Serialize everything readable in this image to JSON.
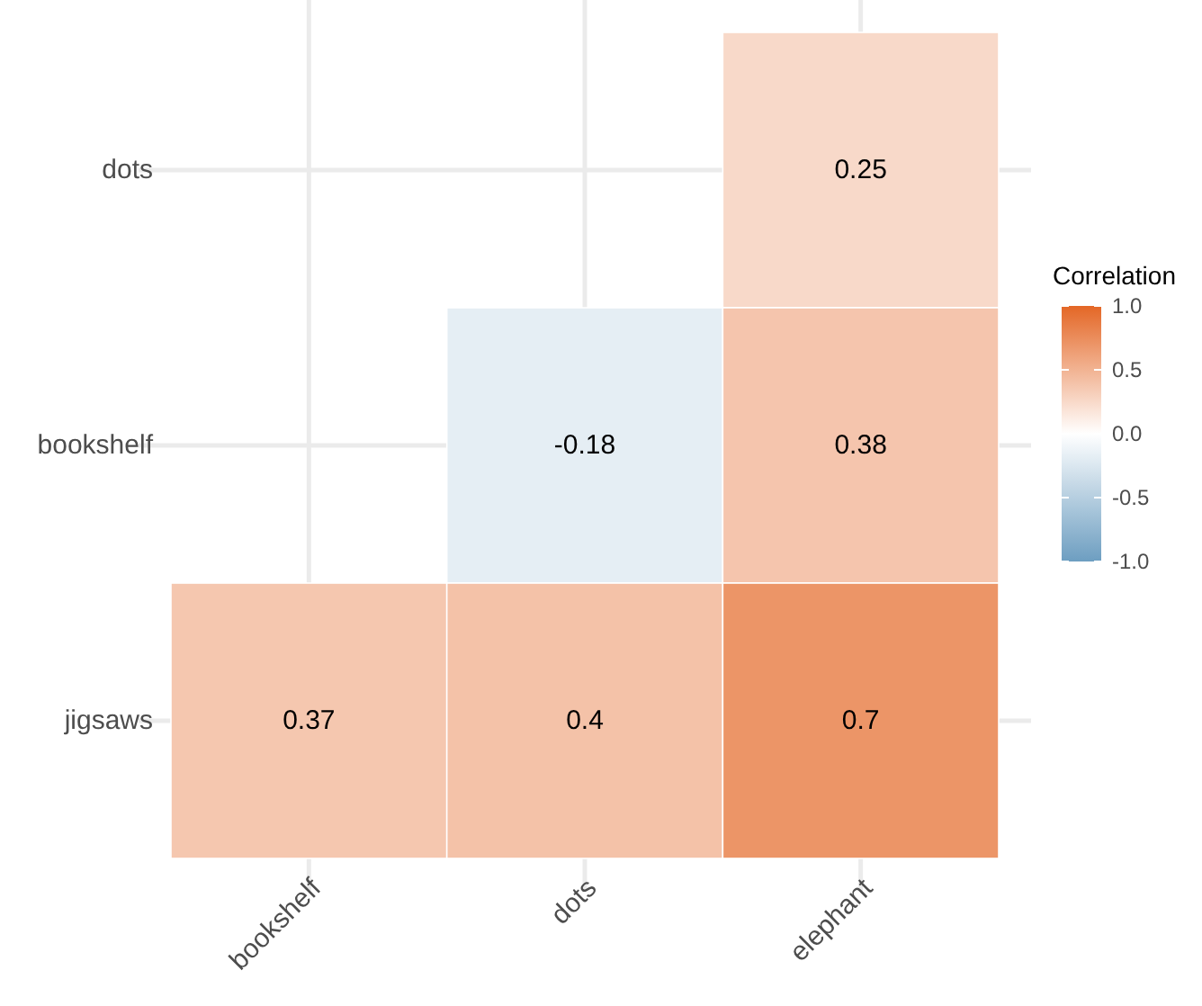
{
  "chart_data": {
    "type": "heatmap",
    "clabel": "Correlation",
    "categories": [
      "bookshelf",
      "dots",
      "elephant"
    ],
    "y_categories": [
      "dots",
      "bookshelf",
      "jigsaws"
    ],
    "cells": [
      [
        null,
        null,
        0.25
      ],
      [
        null,
        -0.18,
        0.38
      ],
      [
        0.37,
        0.4,
        0.7
      ]
    ],
    "clim": [
      -1,
      1
    ],
    "cticks": [
      {
        "value": -1,
        "label": "-1.0"
      },
      {
        "value": -0.5,
        "label": "-0.5"
      },
      {
        "value": 0,
        "label": "0.0"
      },
      {
        "value": 0.5,
        "label": "0.5"
      },
      {
        "value": 1,
        "label": "1.0"
      }
    ],
    "colors": [
      "#6d9ec1",
      "#ffffff",
      "#e46726"
    ],
    "grid": true,
    "data_labels": true
  }
}
